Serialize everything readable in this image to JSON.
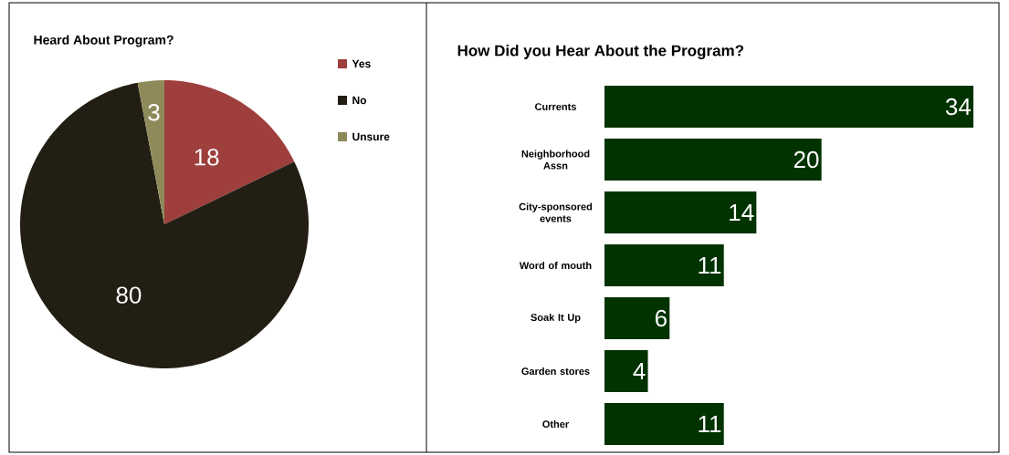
{
  "chart_data": [
    {
      "type": "pie",
      "title": "Heard About Program?",
      "categories": [
        "Yes",
        "No",
        "Unsure"
      ],
      "values": [
        18,
        80,
        3
      ],
      "colors": [
        "#9e3f3d",
        "#221e14",
        "#8e8a5a"
      ],
      "data_labels": true,
      "legend": "right"
    },
    {
      "type": "bar",
      "orientation": "horizontal",
      "title": "How Did you Hear About the Program?",
      "categories": [
        "Currents",
        "Neighborhood Assn",
        "City-sponsored events",
        "Word of mouth",
        "Soak It Up",
        "Garden stores",
        "Other"
      ],
      "values": [
        34,
        20,
        14,
        11,
        6,
        4,
        11
      ],
      "color": "#003300",
      "data_labels": true
    }
  ]
}
